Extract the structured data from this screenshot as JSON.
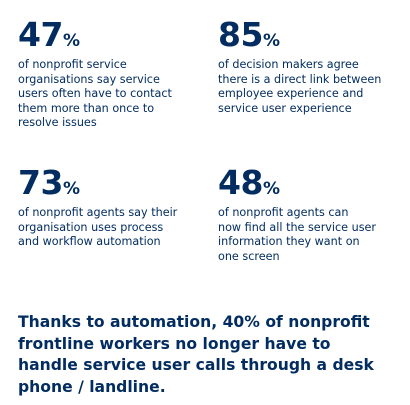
{
  "stats": [
    {
      "number": "47",
      "unit": "%",
      "lines": [
        "of nonprofit service",
        "organisations say service",
        "users often have to contact",
        "them more than once to",
        "resolve issues"
      ]
    },
    {
      "number": "85",
      "unit": "%",
      "lines": [
        "of decision makers agree",
        "there is a direct link between",
        "employee experience and",
        "service user experience"
      ]
    },
    {
      "number": "73",
      "unit": "%",
      "lines": [
        "of nonprofit agents say their",
        "organisation uses process",
        "and workflow automation"
      ]
    },
    {
      "number": "48",
      "unit": "%",
      "lines": [
        "of nonprofit agents can",
        "now find all the service user",
        "information they want on",
        "one screen"
      ]
    }
  ],
  "footer": {
    "lines": [
      "Thanks to automation, 40% of nonprofit",
      "frontline workers no longer have to",
      "handle service user calls through a desk",
      "phone / landline."
    ]
  }
}
